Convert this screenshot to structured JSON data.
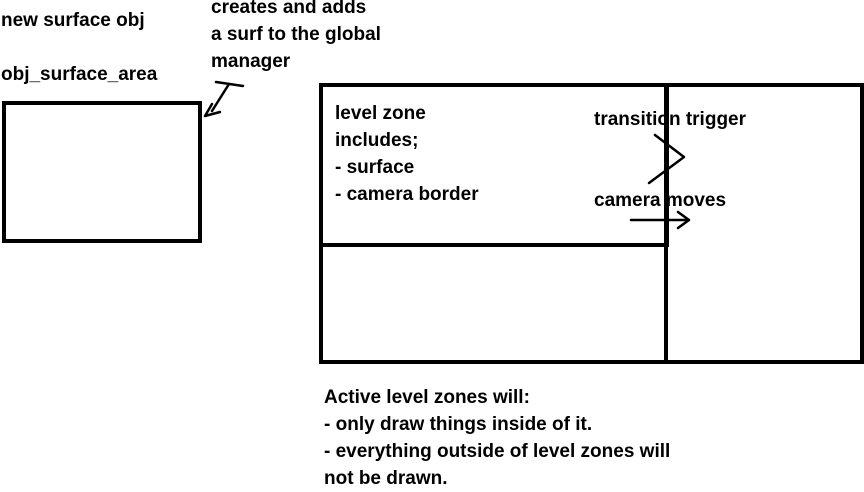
{
  "labels": {
    "new_surface_obj": "new surface obj",
    "obj_surface_area": "obj_surface_area",
    "creates_note": [
      "creates and adds",
      "a surf to the global",
      "manager"
    ],
    "level_zone": [
      "level zone",
      "includes;",
      "- surface",
      "- camera border"
    ],
    "transition_trigger": "transition trigger",
    "camera_moves": "camera moves",
    "active_zones": [
      "Active level zones will:",
      "- only draw things inside of it.",
      "- everything outside of level zones will",
      "not be drawn."
    ]
  },
  "colors": {
    "stroke": "#000000",
    "background": "#ffffff"
  }
}
